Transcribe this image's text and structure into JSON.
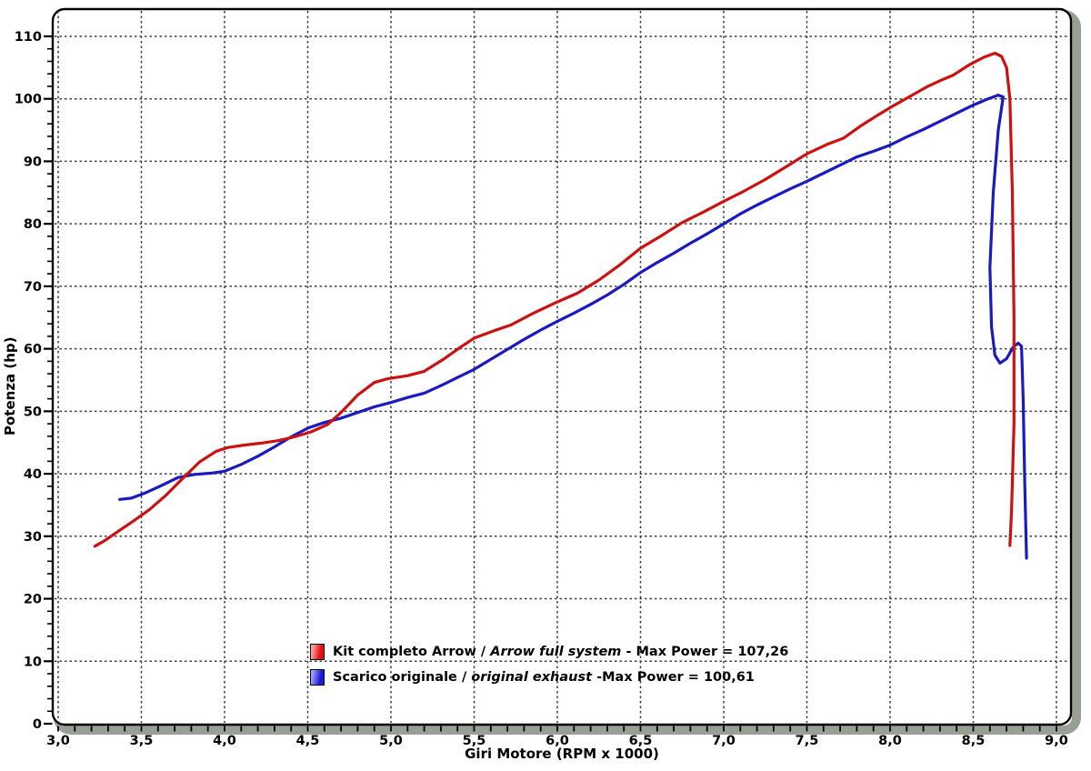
{
  "axes": {
    "x_title": "Giri Motore (RPM x 1000)",
    "y_title": "Potenza (hp)"
  },
  "legend": {
    "row_arrow": {
      "prefix": "Kit completo Arrow / ",
      "italic": "Arrow full system",
      "suffix": " - Max Power = 107,26"
    },
    "row_original": {
      "prefix": "Scarico originale / ",
      "italic": "original exhaust",
      "suffix": " -Max Power = 100,61"
    }
  },
  "chart_data": {
    "type": "line",
    "title": "",
    "xlabel": "Giri Motore (RPM x 1000)",
    "ylabel": "Potenza (hp)",
    "xlim": [
      3.0,
      9.1
    ],
    "ylim": [
      0,
      114
    ],
    "grid": "dashed-major-both-axes",
    "legend_position": "inside-bottom-center",
    "x_major_ticks": [
      3.0,
      3.5,
      4.0,
      4.5,
      5.0,
      5.5,
      6.0,
      6.5,
      7.0,
      7.5,
      8.0,
      8.5,
      9.0
    ],
    "x_tick_labels": [
      "3,0",
      "3,5",
      "4,0",
      "4,5",
      "5,0",
      "5,5",
      "6,0",
      "6,5",
      "7,0",
      "7,5",
      "8,0",
      "8,5",
      "9,0"
    ],
    "x_minor_step": 0.1,
    "y_major_ticks": [
      0,
      10,
      20,
      30,
      40,
      50,
      60,
      70,
      80,
      90,
      100,
      110
    ],
    "y_tick_labels": [
      "0",
      "10",
      "20",
      "30",
      "40",
      "50",
      "60",
      "70",
      "80",
      "90",
      "100",
      "110"
    ],
    "y_minor_step": 2,
    "colors": {
      "arrow": "#cc1111",
      "original": "#1a1ac0",
      "grid": "#3c3c3c",
      "frame": "#000000",
      "shadow": "#98a093"
    },
    "series": [
      {
        "name": "Kit completo Arrow / Arrow full system",
        "max_power": 107.26,
        "max_power_label": "107,26",
        "color": "#cc1111",
        "points": [
          [
            3.22,
            28.4
          ],
          [
            3.28,
            29.3
          ],
          [
            3.35,
            30.6
          ],
          [
            3.45,
            32.4
          ],
          [
            3.55,
            34.3
          ],
          [
            3.65,
            36.6
          ],
          [
            3.75,
            39.3
          ],
          [
            3.85,
            41.9
          ],
          [
            3.95,
            43.6
          ],
          [
            4.02,
            44.2
          ],
          [
            4.12,
            44.6
          ],
          [
            4.22,
            44.9
          ],
          [
            4.32,
            45.3
          ],
          [
            4.42,
            45.9
          ],
          [
            4.52,
            46.7
          ],
          [
            4.62,
            47.9
          ],
          [
            4.7,
            49.8
          ],
          [
            4.8,
            52.6
          ],
          [
            4.9,
            54.6
          ],
          [
            4.98,
            55.2
          ],
          [
            5.1,
            55.7
          ],
          [
            5.2,
            56.4
          ],
          [
            5.32,
            58.4
          ],
          [
            5.42,
            60.3
          ],
          [
            5.5,
            61.7
          ],
          [
            5.62,
            62.9
          ],
          [
            5.72,
            63.8
          ],
          [
            5.85,
            65.6
          ],
          [
            6.0,
            67.5
          ],
          [
            6.12,
            68.9
          ],
          [
            6.25,
            71.0
          ],
          [
            6.38,
            73.5
          ],
          [
            6.5,
            76.1
          ],
          [
            6.62,
            78.0
          ],
          [
            6.75,
            80.2
          ],
          [
            6.88,
            81.9
          ],
          [
            7.0,
            83.6
          ],
          [
            7.12,
            85.2
          ],
          [
            7.25,
            87.1
          ],
          [
            7.38,
            89.2
          ],
          [
            7.5,
            91.2
          ],
          [
            7.62,
            92.7
          ],
          [
            7.72,
            93.7
          ],
          [
            7.82,
            95.6
          ],
          [
            7.92,
            97.3
          ],
          [
            8.02,
            98.9
          ],
          [
            8.12,
            100.4
          ],
          [
            8.22,
            101.9
          ],
          [
            8.3,
            102.9
          ],
          [
            8.38,
            103.8
          ],
          [
            8.48,
            105.5
          ],
          [
            8.56,
            106.6
          ],
          [
            8.63,
            107.3
          ],
          [
            8.67,
            106.8
          ],
          [
            8.7,
            105.0
          ],
          [
            8.72,
            100.0
          ],
          [
            8.735,
            85.0
          ],
          [
            8.745,
            65.0
          ],
          [
            8.745,
            48.0
          ],
          [
            8.73,
            34.0
          ],
          [
            8.72,
            28.5
          ]
        ]
      },
      {
        "name": "Scarico originale / original exhaust",
        "max_power": 100.61,
        "max_power_label": "100,61",
        "color": "#1a1ac0",
        "points": [
          [
            3.37,
            35.9
          ],
          [
            3.44,
            36.1
          ],
          [
            3.52,
            36.9
          ],
          [
            3.62,
            38.1
          ],
          [
            3.72,
            39.4
          ],
          [
            3.82,
            39.9
          ],
          [
            3.92,
            40.1
          ],
          [
            4.0,
            40.4
          ],
          [
            4.1,
            41.5
          ],
          [
            4.2,
            42.8
          ],
          [
            4.3,
            44.3
          ],
          [
            4.4,
            45.9
          ],
          [
            4.5,
            47.3
          ],
          [
            4.6,
            48.2
          ],
          [
            4.7,
            48.9
          ],
          [
            4.8,
            49.8
          ],
          [
            4.9,
            50.7
          ],
          [
            5.0,
            51.4
          ],
          [
            5.1,
            52.2
          ],
          [
            5.2,
            52.9
          ],
          [
            5.3,
            54.1
          ],
          [
            5.4,
            55.4
          ],
          [
            5.5,
            56.7
          ],
          [
            5.6,
            58.3
          ],
          [
            5.7,
            59.9
          ],
          [
            5.8,
            61.5
          ],
          [
            5.9,
            63.0
          ],
          [
            6.0,
            64.4
          ],
          [
            6.1,
            65.7
          ],
          [
            6.2,
            67.1
          ],
          [
            6.3,
            68.6
          ],
          [
            6.4,
            70.3
          ],
          [
            6.5,
            72.2
          ],
          [
            6.6,
            73.8
          ],
          [
            6.7,
            75.3
          ],
          [
            6.8,
            76.9
          ],
          [
            6.9,
            78.4
          ],
          [
            7.0,
            80.0
          ],
          [
            7.1,
            81.6
          ],
          [
            7.2,
            83.0
          ],
          [
            7.3,
            84.3
          ],
          [
            7.4,
            85.6
          ],
          [
            7.5,
            86.8
          ],
          [
            7.6,
            88.1
          ],
          [
            7.7,
            89.4
          ],
          [
            7.8,
            90.7
          ],
          [
            7.9,
            91.6
          ],
          [
            8.0,
            92.6
          ],
          [
            8.1,
            93.9
          ],
          [
            8.2,
            95.1
          ],
          [
            8.3,
            96.4
          ],
          [
            8.4,
            97.7
          ],
          [
            8.5,
            99.0
          ],
          [
            8.58,
            99.9
          ],
          [
            8.65,
            100.6
          ],
          [
            8.68,
            100.3
          ],
          [
            8.65,
            95.0
          ],
          [
            8.62,
            85.0
          ],
          [
            8.6,
            73.0
          ],
          [
            8.61,
            63.5
          ],
          [
            8.63,
            59.0
          ],
          [
            8.66,
            57.7
          ],
          [
            8.7,
            58.4
          ],
          [
            8.74,
            60.3
          ],
          [
            8.77,
            60.9
          ],
          [
            8.79,
            60.4
          ],
          [
            8.8,
            52.0
          ],
          [
            8.81,
            38.0
          ],
          [
            8.82,
            26.5
          ]
        ]
      }
    ]
  }
}
